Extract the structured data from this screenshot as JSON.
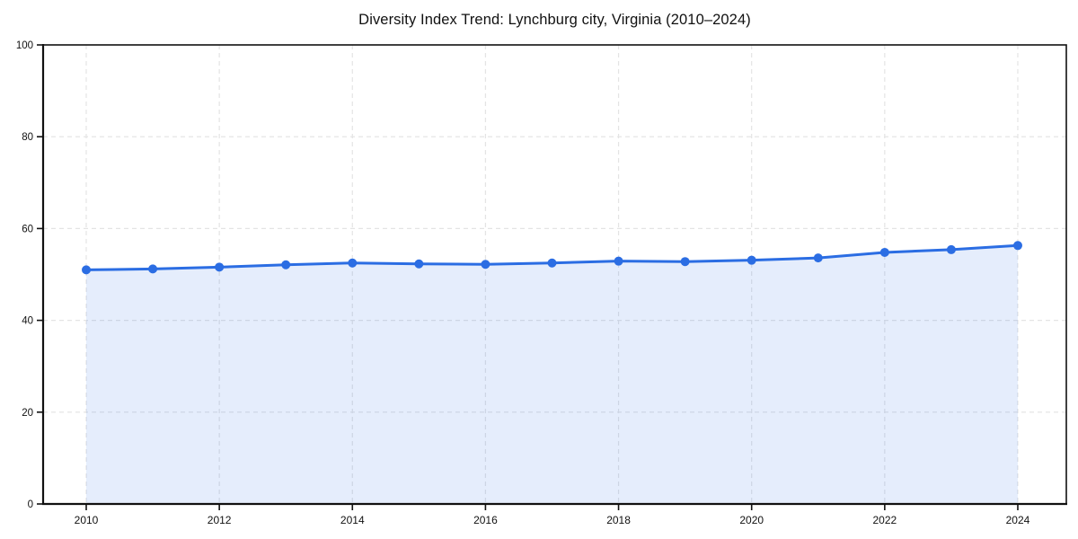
{
  "chart_data": {
    "type": "area",
    "title": "Diversity Index Trend: Lynchburg city, Virginia (2010–2024)",
    "xlabel": "",
    "ylabel": "",
    "x": [
      2010,
      2011,
      2012,
      2013,
      2014,
      2015,
      2016,
      2017,
      2018,
      2019,
      2020,
      2021,
      2022,
      2023,
      2024
    ],
    "series": [
      {
        "name": "Diversity Index",
        "values": [
          51.0,
          51.2,
          51.6,
          52.1,
          52.5,
          52.3,
          52.2,
          52.5,
          52.9,
          52.8,
          53.1,
          53.6,
          54.8,
          55.4,
          56.3
        ]
      }
    ],
    "ylim": [
      0,
      100
    ],
    "yticks": [
      0,
      20,
      40,
      60,
      80,
      100
    ],
    "xticks": [
      2010,
      2012,
      2014,
      2016,
      2018,
      2020,
      2022,
      2024
    ],
    "grid": true,
    "grid_style": "dashed",
    "legend": false,
    "markers": true,
    "colors": {
      "line": "#2b6de3",
      "marker": "#2b6de3",
      "fill": "#2b6de3",
      "fill_opacity": 0.12,
      "grid": "#e4e4e4",
      "axis": "#111111",
      "text": "#111111",
      "background": "#ffffff"
    }
  }
}
